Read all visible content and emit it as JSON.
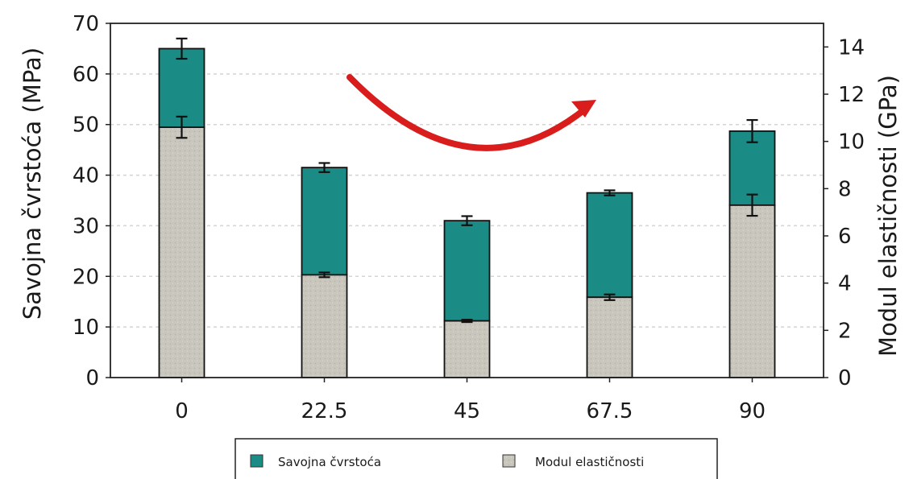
{
  "chart_data": {
    "type": "bar",
    "stacked": true,
    "categories": [
      "0",
      "22.5",
      "45",
      "67.5",
      "90"
    ],
    "ylabel": "Savojna čvrstoća (MPa)",
    "y2label": "Modul elastičnosti (GPa)",
    "ylim": [
      0,
      70
    ],
    "y2lim": [
      0,
      15
    ],
    "yticks": [
      "0",
      "10",
      "20",
      "30",
      "40",
      "50",
      "60",
      "70"
    ],
    "y2ticks": [
      "0",
      "2",
      "4",
      "6",
      "8",
      "10",
      "12",
      "14"
    ],
    "grid": true,
    "legend_position": "bottom",
    "annotation": "red curved arrow",
    "series": [
      {
        "name": "Modul elastičnosti",
        "axis": "right",
        "values": [
          10.6,
          4.35,
          2.4,
          3.4,
          7.3
        ],
        "errors": [
          0.45,
          0.1,
          0.05,
          0.12,
          0.45
        ],
        "color": "#c9c7bd"
      },
      {
        "name": "Savojna čvrstoća",
        "axis": "left",
        "values": [
          65,
          41.5,
          31,
          36.5,
          48.7
        ],
        "errors": [
          2,
          0.9,
          0.9,
          0.5,
          2.2
        ],
        "color": "#1a8c85"
      }
    ],
    "colors": {
      "strength": "#1a8c85",
      "modulus": "#c9c7bd",
      "arrow": "#d91c1c",
      "grid": "#d4d4d4"
    }
  }
}
